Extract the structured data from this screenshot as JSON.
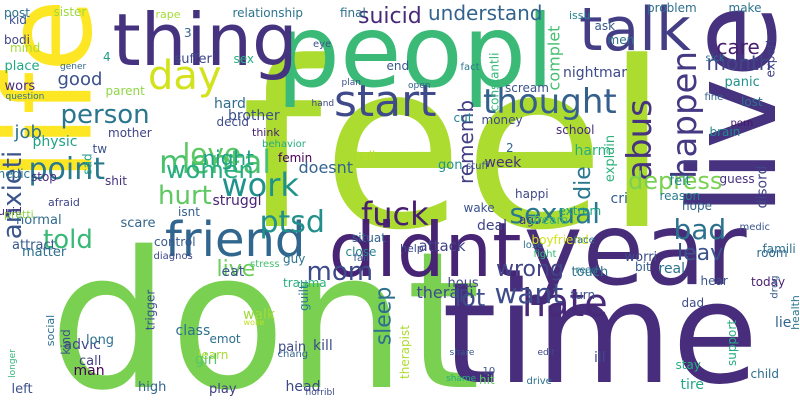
{
  "words": [
    {
      "text": "feel",
      "color": "#addc30"
    },
    {
      "text": "dont",
      "color": "#7ad151"
    },
    {
      "text": "time",
      "color": "#472d7b"
    },
    {
      "text": "peopl",
      "color": "#3aba76"
    },
    {
      "text": "life",
      "color": "#fde725"
    },
    {
      "text": "thing",
      "color": "#46337f"
    },
    {
      "text": "live",
      "color": "#46327e"
    },
    {
      "text": "year",
      "color": "#472c7a"
    },
    {
      "text": "didnt",
      "color": "#482475"
    },
    {
      "text": "friend",
      "color": "#31668e"
    },
    {
      "text": "talk",
      "color": "#433e85"
    },
    {
      "text": "start",
      "color": "#3e4a89"
    },
    {
      "text": "day",
      "color": "#d2e21b"
    },
    {
      "text": "thought",
      "color": "#35608d"
    },
    {
      "text": "hate",
      "color": "#482878"
    },
    {
      "text": "fuck",
      "color": "#481f70"
    },
    {
      "text": "sexual",
      "color": "#2a788e"
    },
    {
      "text": "happen",
      "color": "#443983"
    },
    {
      "text": "abus",
      "color": "#463480"
    },
    {
      "text": "understand",
      "color": "#33638d"
    },
    {
      "text": "suicid",
      "color": "#482878"
    },
    {
      "text": "mental",
      "color": "#4ac16d"
    },
    {
      "text": "person",
      "color": "#2a768e"
    },
    {
      "text": "love",
      "color": "#5cc863"
    },
    {
      "text": "hurt",
      "color": "#5ec962"
    },
    {
      "text": "women",
      "color": "#27ad81"
    },
    {
      "text": "work",
      "color": "#20928c"
    },
    {
      "text": "point",
      "color": "#2a788e"
    },
    {
      "text": "good",
      "color": "#3b518b"
    },
    {
      "text": "ptsd",
      "color": "#21908d"
    },
    {
      "text": "mom",
      "color": "#3e4a89"
    },
    {
      "text": "bad",
      "color": "#2c728e"
    },
    {
      "text": "told",
      "color": "#38b977"
    },
    {
      "text": "anxieti",
      "color": "#3a548c"
    },
    {
      "text": "wrong",
      "color": "#414487"
    },
    {
      "text": "want",
      "color": "#3e4c8a"
    },
    {
      "text": "depress",
      "color": "#7ad151"
    },
    {
      "text": "care",
      "color": "#481f70"
    },
    {
      "text": "month",
      "color": "#3f4788"
    },
    {
      "text": "leav",
      "color": "#3b528b"
    },
    {
      "text": "night",
      "color": "#1fa287"
    },
    {
      "text": "lot",
      "color": "#3e4a89"
    },
    {
      "text": "live",
      "color": "#6ccd5a"
    },
    {
      "text": "rememb",
      "color": "#433e85"
    },
    {
      "text": "die",
      "color": "#2a788e"
    },
    {
      "text": "sleep",
      "color": "#2d708e"
    },
    {
      "text": "job",
      "color": "#2c738e"
    },
    {
      "text": "kid",
      "color": "#3b518b"
    },
    {
      "text": "post",
      "color": "#2c718e"
    },
    {
      "text": "sister",
      "color": "#9bd93c"
    },
    {
      "text": "rape",
      "color": "#a5db36"
    },
    {
      "text": "relationship",
      "color": "#2c738e"
    },
    {
      "text": "final",
      "color": "#2c718e"
    },
    {
      "text": "issu",
      "color": "#25848e"
    },
    {
      "text": "problem",
      "color": "#2e6e8e"
    },
    {
      "text": "make",
      "color": "#2c738e"
    },
    {
      "text": "ask",
      "color": "#38598c"
    },
    {
      "text": "men",
      "color": "#2c718e"
    },
    {
      "text": "suffer",
      "color": "#3f4889"
    },
    {
      "text": "sex",
      "color": "#2ab07f"
    },
    {
      "text": "eye",
      "color": "#3b528b"
    },
    {
      "text": "bodi",
      "color": "#404588"
    },
    {
      "text": "mind",
      "color": "#a8db34"
    },
    {
      "text": "place",
      "color": "#22a785"
    },
    {
      "text": "wors",
      "color": "#472d7b"
    },
    {
      "text": "question",
      "color": "#2c738e"
    },
    {
      "text": "gener",
      "color": "#31678e"
    },
    {
      "text": "4",
      "color": "#1e9c89"
    },
    {
      "text": "3",
      "color": "#32648e"
    },
    {
      "text": "end",
      "color": "#38598c"
    },
    {
      "text": "fact",
      "color": "#2a778e"
    },
    {
      "text": "open",
      "color": "#33638d"
    },
    {
      "text": "plan",
      "color": "#3c508b"
    },
    {
      "text": "hand",
      "color": "#3f4889"
    },
    {
      "text": "complet",
      "color": "#45bf70"
    },
    {
      "text": "constantli",
      "color": "#37b878"
    },
    {
      "text": "nightmar",
      "color": "#3e4a89"
    },
    {
      "text": "scream",
      "color": "#3b528b"
    },
    {
      "text": "sick",
      "color": "#2e6f8e"
    },
    {
      "text": "panic",
      "color": "#20938c"
    },
    {
      "text": "lost",
      "color": "#2c728e"
    },
    {
      "text": "brain",
      "color": "#24878e"
    },
    {
      "text": "expert",
      "color": "#424086"
    },
    {
      "text": "fine",
      "color": "#33628d"
    },
    {
      "text": "porn",
      "color": "#481467"
    },
    {
      "text": "cut",
      "color": "#25858e"
    },
    {
      "text": "school",
      "color": "#472c7a"
    },
    {
      "text": "money",
      "color": "#3e4989"
    },
    {
      "text": "harm",
      "color": "#29af7f"
    },
    {
      "text": "explain",
      "color": "#2db27d"
    },
    {
      "text": "2",
      "color": "#31668e"
    },
    {
      "text": "week",
      "color": "#472f7d"
    },
    {
      "text": "hard",
      "color": "#2e6d8e"
    },
    {
      "text": "parent",
      "color": "#8fd744"
    },
    {
      "text": "decid",
      "color": "#3e4c8a"
    },
    {
      "text": "brother",
      "color": "#3b518b"
    },
    {
      "text": "mother",
      "color": "#404588"
    },
    {
      "text": "physic",
      "color": "#1fa287"
    },
    {
      "text": "sad",
      "color": "#1fa088"
    },
    {
      "text": "tw",
      "color": "#3b518b"
    },
    {
      "text": "think",
      "color": "#481f70"
    },
    {
      "text": "femin",
      "color": "#440154"
    },
    {
      "text": "behavior",
      "color": "#25ab82"
    },
    {
      "text": "tell",
      "color": "#b5de2b"
    },
    {
      "text": "doesnt",
      "color": "#32648e"
    },
    {
      "text": "medic",
      "color": "#2b748e"
    },
    {
      "text": "stop",
      "color": "#46307e"
    },
    {
      "text": "shit",
      "color": "#46337f"
    },
    {
      "text": "stupid",
      "color": "#472d7b"
    },
    {
      "text": "afraid",
      "color": "#3f4788"
    },
    {
      "text": "struggl",
      "color": "#482475"
    },
    {
      "text": "gon",
      "color": "#21918c"
    },
    {
      "text": "stuff",
      "color": "#3b528b"
    },
    {
      "text": "wake",
      "color": "#3b528b"
    },
    {
      "text": "happi",
      "color": "#3f4788"
    },
    {
      "text": "deal",
      "color": "#404588"
    },
    {
      "text": "ago",
      "color": "#453781"
    },
    {
      "text": "dream",
      "color": "#3cbb75"
    },
    {
      "text": "cri",
      "color": "#34608d"
    },
    {
      "text": "felt",
      "color": "#24878e"
    },
    {
      "text": "reason",
      "color": "#287d8e"
    },
    {
      "text": "hope",
      "color": "#33638d"
    },
    {
      "text": "guess",
      "color": "#46307e"
    },
    {
      "text": "disord",
      "color": "#414487"
    },
    {
      "text": "normal",
      "color": "#2f6c8e"
    },
    {
      "text": "pretti",
      "color": "#8fd744"
    },
    {
      "text": "scare",
      "color": "#32658e"
    },
    {
      "text": "isnt",
      "color": "#355f8d"
    },
    {
      "text": "guy",
      "color": "#2c738e"
    },
    {
      "text": "attract",
      "color": "#38598c"
    },
    {
      "text": "matter",
      "color": "#2c718e"
    },
    {
      "text": "control",
      "color": "#38598c"
    },
    {
      "text": "stress",
      "color": "#46c06f"
    },
    {
      "text": "guilti",
      "color": "#29798e"
    },
    {
      "text": "close",
      "color": "#26828e"
    },
    {
      "text": "fall",
      "color": "#3a548c"
    },
    {
      "text": "lose",
      "color": "#2e6e8e"
    },
    {
      "text": "help",
      "color": "#3e4a89"
    },
    {
      "text": "boyfriend",
      "color": "#d2e21b"
    },
    {
      "text": "extrem",
      "color": "#1fa188"
    },
    {
      "text": "face",
      "color": "#2c718e"
    },
    {
      "text": "medic",
      "color": "#39568c"
    },
    {
      "text": "famili",
      "color": "#2d708e"
    },
    {
      "text": "room",
      "color": "#306a8e"
    },
    {
      "text": "diagnos",
      "color": "#3e4989"
    },
    {
      "text": "situat",
      "color": "#33628d"
    },
    {
      "text": "attack",
      "color": "#414487"
    },
    {
      "text": "fight",
      "color": "#35b779"
    },
    {
      "text": "worri",
      "color": "#3e4c8a"
    },
    {
      "text": "bit",
      "color": "#355f8d"
    },
    {
      "text": "read",
      "color": "#2a788e"
    },
    {
      "text": "hear",
      "color": "#3a548c"
    },
    {
      "text": "touch",
      "color": "#2c738e"
    },
    {
      "text": "real",
      "color": "#2c728e"
    },
    {
      "text": "today",
      "color": "#481f70"
    },
    {
      "text": "dad",
      "color": "#3e4c8a"
    },
    {
      "text": "drug",
      "color": "#37598c"
    },
    {
      "text": "eat",
      "color": "#3a548c"
    },
    {
      "text": "social",
      "color": "#2d708e"
    },
    {
      "text": "trauma",
      "color": "#2ab07f"
    },
    {
      "text": "hous",
      "color": "#414487"
    },
    {
      "text": "therapi",
      "color": "#3e4a89"
    },
    {
      "text": "turn",
      "color": "#3b528b"
    },
    {
      "text": "health",
      "color": "#2a788e"
    },
    {
      "text": "lie",
      "color": "#32648e"
    },
    {
      "text": "advic",
      "color": "#3f4788"
    },
    {
      "text": "long",
      "color": "#2c728e"
    },
    {
      "text": "kind",
      "color": "#3a548c"
    },
    {
      "text": "class",
      "color": "#2c718e"
    },
    {
      "text": "walk",
      "color": "#a0da39"
    },
    {
      "text": "woke",
      "color": "#c0df25"
    },
    {
      "text": "chang",
      "color": "#33638d"
    },
    {
      "text": "pain",
      "color": "#3e4a89"
    },
    {
      "text": "emot",
      "color": "#2e6e8e"
    },
    {
      "text": "kill",
      "color": "#3e4c8a"
    },
    {
      "text": "trigger",
      "color": "#3c508b"
    },
    {
      "text": "learn",
      "color": "#a8db34"
    },
    {
      "text": "girl",
      "color": "#56c667"
    },
    {
      "text": "call",
      "color": "#424086"
    },
    {
      "text": "man",
      "color": "#440154"
    },
    {
      "text": "high",
      "color": "#33638d"
    },
    {
      "text": "play",
      "color": "#424086"
    },
    {
      "text": "head",
      "color": "#3e4989"
    },
    {
      "text": "horribl",
      "color": "#3e4a89"
    },
    {
      "text": "left",
      "color": "#3b528b"
    },
    {
      "text": "longer",
      "color": "#35b779"
    },
    {
      "text": "share",
      "color": "#39568c"
    },
    {
      "text": "edit",
      "color": "#3f4788"
    },
    {
      "text": "drive",
      "color": "#2c728e"
    },
    {
      "text": "ill",
      "color": "#3e4a89"
    },
    {
      "text": "stay",
      "color": "#2ab07f"
    },
    {
      "text": "tire",
      "color": "#22a785"
    },
    {
      "text": "support",
      "color": "#27ad81"
    },
    {
      "text": "child",
      "color": "#2e6e8e"
    },
    {
      "text": "therapist",
      "color": "#addc30"
    },
    {
      "text": "hit",
      "color": "#5ec962"
    },
    {
      "text": "shame",
      "color": "#25ac82"
    },
    {
      "text": "10",
      "color": "#3b528b"
    }
  ]
}
